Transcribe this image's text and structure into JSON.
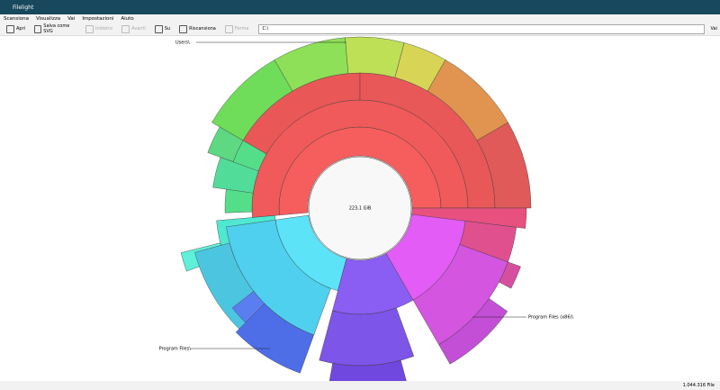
{
  "window": {
    "title": "Filelight"
  },
  "menu": [
    "Scansiona",
    "Visualizza",
    "Vai",
    "Impostazioni",
    "Aiuto"
  ],
  "toolbar": [
    "Apri",
    "Salva come SVG",
    "Indietro",
    "Avanti",
    "Su",
    "Riscansiona",
    "Ferma"
  ],
  "address": {
    "value": "C:\\",
    "go": "Vai"
  },
  "chart": {
    "center": "223,1 GiB",
    "labels": [
      "Users\\",
      "Program Files\\",
      "Program Files (x86)\\"
    ]
  },
  "status": "1.044.316 File"
}
